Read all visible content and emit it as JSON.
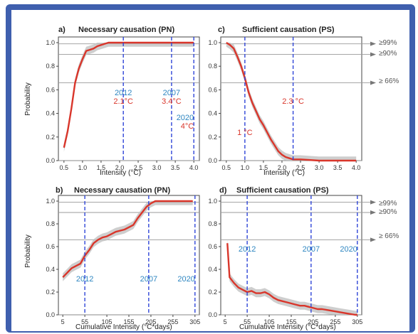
{
  "colors": {
    "frame": "#3f5fae",
    "curve": "#d9362b",
    "band": "#bdbdbd",
    "vline": "#2f45d8",
    "year_label": "#2e86c1",
    "temp_label": "#d9362b",
    "ref_line": "#9a9a9a"
  },
  "panels": {
    "a": {
      "letter": "a)",
      "title": "Necessary causation (PN)",
      "xlabel": "Intensity (°C)"
    },
    "b": {
      "letter": "b)",
      "title": "Necessary causation (PN)",
      "xlabel": "Cumulative Intensity (°C*days)"
    },
    "c": {
      "letter": "c)",
      "title": "Sufficient  causation (PS)",
      "xlabel": "Intensity (°C)"
    },
    "d": {
      "letter": "d)",
      "title": "Sufficient  causation (PS)",
      "xlabel": "Cumulative Intensity (°C*days)"
    }
  },
  "ylabel": "Probability",
  "thresholds_top": {
    "p99": "≥99%",
    "p90": "≥90%",
    "p66": "≥ 66%"
  },
  "thresholds_bottom": {
    "p99": "≥99%",
    "p90": "≥90%",
    "p66": "≥ 66%"
  },
  "chart_data": [
    {
      "panel": "a",
      "type": "line",
      "x": [
        0.5,
        0.6,
        0.7,
        0.8,
        0.9,
        1.0,
        1.1,
        1.2,
        1.3,
        1.4,
        1.5,
        1.6,
        1.7,
        1.8,
        1.9,
        2.0,
        2.1,
        2.5,
        3.0,
        3.4,
        3.5,
        4.0
      ],
      "y": [
        0.11,
        0.25,
        0.44,
        0.66,
        0.78,
        0.86,
        0.93,
        0.94,
        0.95,
        0.97,
        0.98,
        0.99,
        1.0,
        1.0,
        1.0,
        1.0,
        1.0,
        1.0,
        1.0,
        1.0,
        1.0,
        1.0
      ],
      "xlim": [
        0.35,
        4.15
      ],
      "ylim": [
        0.0,
        1.0
      ],
      "xticks": [
        "0.5",
        "1.0",
        "1.5",
        "2.0",
        "2.5",
        "3.0",
        "3.5",
        "4.0"
      ],
      "yticks": [
        "0.0",
        "0.2",
        "0.4",
        "0.6",
        "0.8",
        "1.0"
      ],
      "vlines": [
        {
          "x": 2.1,
          "year": "2012",
          "temp": "2.1°C"
        },
        {
          "x": 3.4,
          "year": "2007",
          "temp": "3.4°C"
        },
        {
          "x": 4.0,
          "year": "2020",
          "temp": "4°C"
        }
      ]
    },
    {
      "panel": "c",
      "type": "line",
      "x": [
        0.5,
        0.6,
        0.7,
        0.8,
        0.9,
        1.0,
        1.1,
        1.2,
        1.3,
        1.4,
        1.5,
        1.6,
        1.7,
        1.8,
        1.9,
        2.0,
        2.1,
        2.2,
        2.3,
        2.5,
        3.0,
        3.5,
        4.0
      ],
      "y": [
        1.0,
        0.98,
        0.95,
        0.88,
        0.8,
        0.7,
        0.58,
        0.49,
        0.42,
        0.35,
        0.3,
        0.24,
        0.18,
        0.13,
        0.08,
        0.05,
        0.03,
        0.02,
        0.01,
        0.01,
        0.0,
        0.0,
        0.0
      ],
      "xlim": [
        0.35,
        4.15
      ],
      "ylim": [
        0.0,
        1.0
      ],
      "xticks": [
        "0.5",
        "1.0",
        "1.5",
        "2.0",
        "2.5",
        "3.0",
        "3.5",
        "4.0"
      ],
      "yticks": [
        "0.0",
        "0.2",
        "0.4",
        "0.6",
        "0.8",
        "1.0"
      ],
      "vlines": [
        {
          "x": 1.0,
          "temp": "1 °C"
        },
        {
          "x": 2.3,
          "temp": "2.3 °C"
        }
      ],
      "hlines": [
        0.99,
        0.9,
        0.66
      ]
    },
    {
      "panel": "b",
      "type": "line",
      "x": [
        5,
        15,
        25,
        35,
        45,
        55,
        65,
        75,
        85,
        95,
        105,
        115,
        125,
        135,
        145,
        155,
        165,
        175,
        185,
        195,
        205,
        215,
        225,
        240,
        255,
        270,
        285,
        300
      ],
      "y": [
        0.33,
        0.37,
        0.41,
        0.43,
        0.45,
        0.52,
        0.57,
        0.63,
        0.66,
        0.68,
        0.69,
        0.71,
        0.73,
        0.74,
        0.75,
        0.77,
        0.79,
        0.85,
        0.9,
        0.95,
        0.98,
        1.0,
        1.0,
        1.0,
        1.0,
        1.0,
        1.0,
        1.0
      ],
      "xlim": [
        -5,
        315
      ],
      "ylim": [
        0.0,
        1.0
      ],
      "xticks": [
        "5",
        "55",
        "105",
        "155",
        "205",
        "255",
        "305"
      ],
      "yticks": [
        "0.0",
        "0.2",
        "0.4",
        "0.6",
        "0.8",
        "1.0"
      ],
      "vlines": [
        {
          "x": 55,
          "year": "2012"
        },
        {
          "x": 200,
          "year": "2007"
        },
        {
          "x": 305,
          "year": "2020"
        }
      ]
    },
    {
      "panel": "d",
      "type": "line",
      "x": [
        10,
        15,
        25,
        35,
        45,
        55,
        65,
        75,
        85,
        95,
        105,
        115,
        125,
        135,
        145,
        155,
        165,
        175,
        185,
        195,
        205,
        215,
        225,
        240,
        255,
        270,
        285,
        300,
        305
      ],
      "y": [
        0.63,
        0.33,
        0.28,
        0.24,
        0.22,
        0.2,
        0.21,
        0.19,
        0.19,
        0.2,
        0.18,
        0.15,
        0.13,
        0.12,
        0.11,
        0.1,
        0.09,
        0.08,
        0.08,
        0.07,
        0.06,
        0.05,
        0.05,
        0.04,
        0.03,
        0.02,
        0.01,
        0.0,
        0.0
      ],
      "xlim": [
        -5,
        315
      ],
      "ylim": [
        0.0,
        1.0
      ],
      "xticks": [
        "5",
        "55",
        "105",
        "155",
        "205",
        "255",
        "305"
      ],
      "yticks": [
        "0.0",
        "0.2",
        "0.4",
        "0.6",
        "0.8",
        "1.0"
      ],
      "vlines": [
        {
          "x": 55,
          "year": "2012"
        },
        {
          "x": 200,
          "year": "2007"
        },
        {
          "x": 305,
          "year": "2020"
        }
      ],
      "hlines": [
        0.99,
        0.9,
        0.66
      ]
    }
  ]
}
